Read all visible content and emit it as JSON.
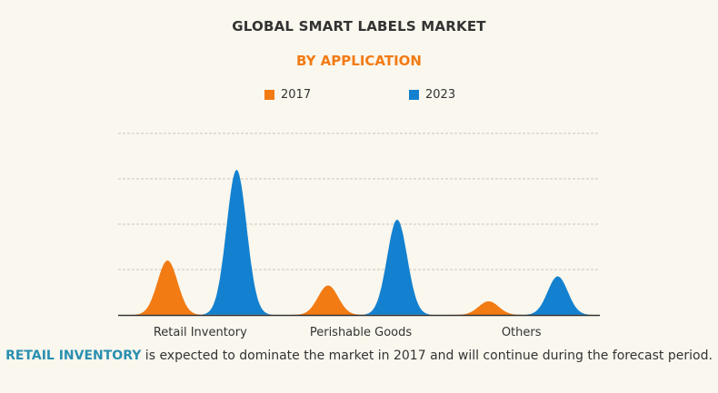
{
  "chart_data": {
    "type": "area",
    "title": "GLOBAL SMART LABELS MARKET",
    "subtitle": "BY APPLICATION",
    "categories": [
      "Retail Inventory",
      "Perishable Goods",
      "Others"
    ],
    "series": [
      {
        "name": "2017",
        "color": "#f27b14",
        "values": [
          2.4,
          1.3,
          0.6
        ]
      },
      {
        "name": "2023",
        "color": "#1381cf",
        "values": [
          6.4,
          4.2,
          1.7
        ]
      }
    ],
    "ylim": [
      0,
      8
    ],
    "grid": true,
    "legend_position": "top-center"
  },
  "caption": {
    "highlight": "RETAIL INVENTORY",
    "rest": " is expected to dominate the market in 2017 and will continue during the forecast period."
  }
}
